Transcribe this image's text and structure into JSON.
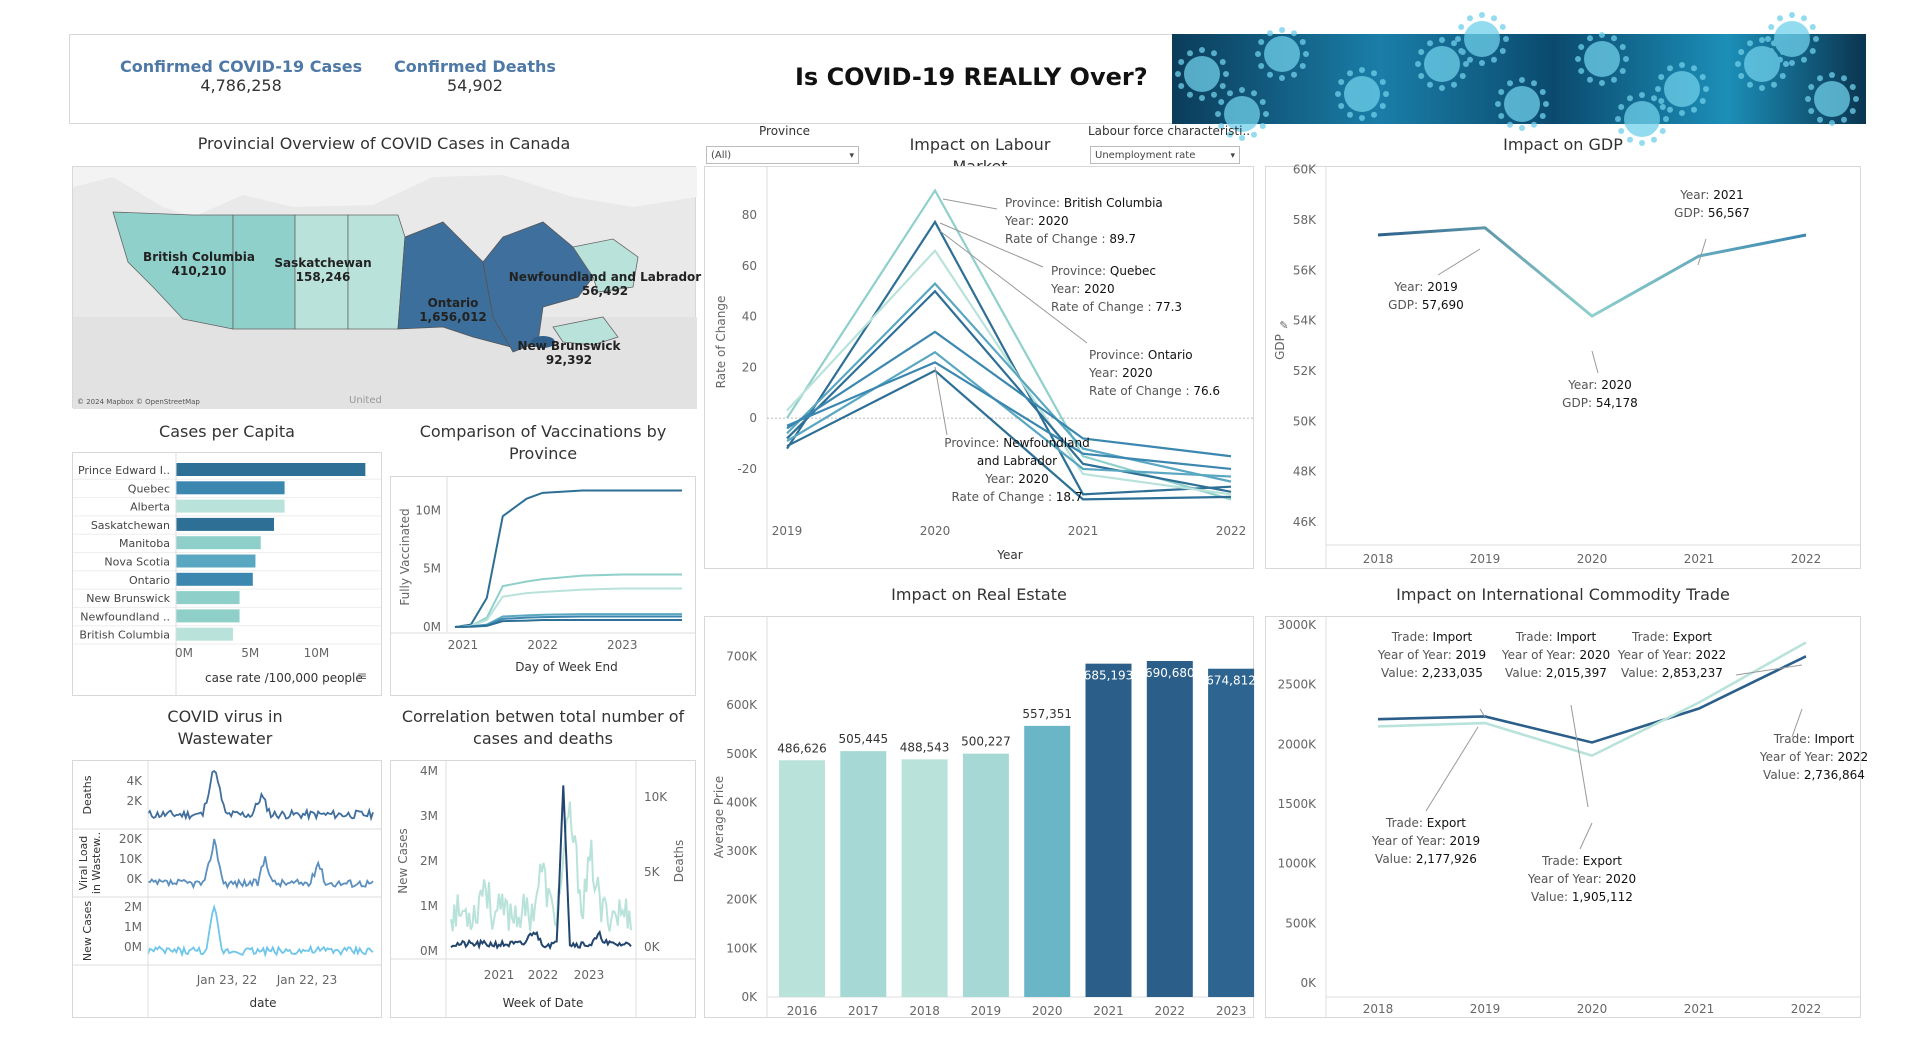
{
  "header": {
    "kpis": [
      {
        "label": "Confirmed COVID-19 Cases",
        "value": "4,786,258"
      },
      {
        "label": "Confirmed Deaths",
        "value": "54,902"
      }
    ],
    "title": "Is COVID-19 REALLY Over?"
  },
  "map": {
    "title": "Provincial Overview of COVID Cases in Canada",
    "attribution": "© 2024 Mapbox © OpenStreetMap",
    "place_label": "United",
    "labels": [
      {
        "name": "British Columbia",
        "value": "410,210"
      },
      {
        "name": "Saskatchewan",
        "value": "158,246"
      },
      {
        "name": "Ontario",
        "value": "1,656,012"
      },
      {
        "name": "Newfoundland and Labrador",
        "value": "56,492"
      },
      {
        "name": "New Brunswick",
        "value": "92,392"
      }
    ]
  },
  "per_capita": {
    "title": "Cases per Capita",
    "axis_label": "case rate /100,000 people",
    "chart_data": {
      "type": "bar",
      "categories": [
        "Prince Edward I..",
        "Quebec",
        "Alberta",
        "Saskatchewan",
        "Manitoba",
        "Nova Scotia",
        "Ontario",
        "New Brunswick",
        "Newfoundland ..",
        "British Columbia"
      ],
      "values": [
        14.3,
        8.2,
        8.2,
        7.4,
        6.4,
        6.0,
        5.8,
        4.8,
        4.8,
        4.3
      ],
      "xticks": [
        "0M",
        "5M",
        "10M"
      ],
      "xlim": [
        0,
        14.5
      ]
    },
    "colors": [
      "#2e6f96",
      "#3b87b0",
      "#b9e3da",
      "#2e6f96",
      "#8fcfc9",
      "#5aa7c2",
      "#3b87b0",
      "#8fcfc9",
      "#8fcfc9",
      "#b9e3da"
    ]
  },
  "vaccination": {
    "title": "Comparison of Vaccinations by Province",
    "ylabel": "Fully Vaccinated",
    "xlabel": "Day of Week End",
    "chart_data": {
      "type": "line",
      "x": [
        2020.9,
        2021.1,
        2021.3,
        2021.5,
        2021.8,
        2022.0,
        2022.5,
        2023.0,
        2023.5,
        2023.75
      ],
      "yticks": [
        "0M",
        "5M",
        "10M"
      ],
      "xticks": [
        "2021",
        "2022",
        "2023"
      ],
      "ylim": [
        0,
        12
      ],
      "xlim": [
        2020.8,
        2023.8
      ],
      "series": [
        {
          "color": "#2e6f96",
          "values": [
            0,
            0.2,
            2.5,
            9.5,
            11.0,
            11.5,
            11.7,
            11.7,
            11.7,
            11.7
          ]
        },
        {
          "color": "#8fd0cb",
          "values": [
            0,
            0.1,
            0.8,
            3.5,
            3.9,
            4.1,
            4.4,
            4.5,
            4.5,
            4.5
          ]
        },
        {
          "color": "#b9e3da",
          "values": [
            0,
            0.1,
            0.6,
            2.6,
            2.9,
            3.0,
            3.2,
            3.3,
            3.3,
            3.3
          ]
        },
        {
          "color": "#5aa7c2",
          "values": [
            0,
            0.05,
            0.2,
            0.9,
            1.0,
            1.05,
            1.1,
            1.1,
            1.1,
            1.1
          ]
        },
        {
          "color": "#3b87b0",
          "values": [
            0,
            0.05,
            0.15,
            0.7,
            0.8,
            0.85,
            0.9,
            0.9,
            0.9,
            0.9
          ]
        },
        {
          "color": "#2e6f96",
          "values": [
            0,
            0.02,
            0.1,
            0.5,
            0.55,
            0.6,
            0.6,
            0.6,
            0.6,
            0.6
          ]
        }
      ]
    }
  },
  "wastewater": {
    "title": "COVID virus in Wastewater",
    "xlabel": "date",
    "xticks": [
      "Jan 23, 22",
      "Jan 22, 23"
    ],
    "rows": [
      {
        "label": "Deaths",
        "ticks": [
          "4K",
          "2K"
        ],
        "color": "#3f6e9c"
      },
      {
        "label": "Viral Load in Wastew..",
        "ticks": [
          "20K",
          "10K",
          "0K"
        ],
        "color": "#5b8fbe"
      },
      {
        "label": "New Cases",
        "ticks": [
          "2M",
          "1M",
          "0M"
        ],
        "color": "#6fc6ea"
      }
    ]
  },
  "correlation": {
    "title": "Correlation betwen total number of cases and deaths",
    "ylabel_left": "New Cases",
    "ylabel_right": "Deaths",
    "xlabel": "Week of Date",
    "yticks_left": [
      "4M",
      "3M",
      "2M",
      "1M",
      "0M"
    ],
    "yticks_right": [
      "10K",
      "5K",
      "0K"
    ],
    "xticks": [
      "2021",
      "2022",
      "2023"
    ]
  },
  "labour": {
    "title": "Impact on Labour Market",
    "province_filter_label": "Province",
    "province_value": "(All)",
    "characteristic_label": "Labour force characteristi..",
    "characteristic_value": "Unemployment rate",
    "ylabel": "Rate of Change",
    "xlabel": "Year",
    "chart_data": {
      "type": "line",
      "x": [
        "2019",
        "2020",
        "2021",
        "2022"
      ],
      "yticks": [
        "80",
        "60",
        "40",
        "20",
        "0",
        "-20"
      ],
      "ylim": [
        -35,
        95
      ],
      "series": [
        {
          "color": "#8fd0cb",
          "values": [
            0,
            89.7,
            -15,
            -32
          ]
        },
        {
          "color": "#2e6f96",
          "values": [
            -12,
            77.3,
            -30,
            -27
          ]
        },
        {
          "color": "#b9e3da",
          "values": [
            3,
            66,
            -22,
            -30
          ]
        },
        {
          "color": "#5aa7c2",
          "values": [
            -6,
            53,
            -12,
            -25
          ]
        },
        {
          "color": "#2e6f96",
          "values": [
            -8,
            50,
            -18,
            -29
          ]
        },
        {
          "color": "#3b87b0",
          "values": [
            -4,
            34,
            -8,
            -15
          ]
        },
        {
          "color": "#5aa7c2",
          "values": [
            -9,
            26,
            -20,
            -23
          ]
        },
        {
          "color": "#2e6f96",
          "values": [
            -11,
            18.7,
            -32,
            -31
          ]
        },
        {
          "color": "#3b87b0",
          "values": [
            -3,
            22,
            -14,
            -20
          ]
        }
      ]
    },
    "annotations": [
      {
        "lines": [
          [
            "Province: ",
            "British Columbia"
          ],
          [
            "Year: ",
            "2020"
          ],
          [
            "Rate of Change : ",
            "89.7"
          ]
        ]
      },
      {
        "lines": [
          [
            "Province: ",
            "Quebec"
          ],
          [
            "Year: ",
            "2020"
          ],
          [
            "Rate of Change : ",
            "77.3"
          ]
        ]
      },
      {
        "lines": [
          [
            "Province: ",
            "Ontario"
          ],
          [
            "Year: ",
            "2020"
          ],
          [
            "Rate of Change : ",
            "76.6"
          ]
        ]
      },
      {
        "lines": [
          [
            "Province: ",
            "Newfoundland"
          ],
          [
            "",
            "and Labrador"
          ],
          [
            "Year: ",
            "2020"
          ],
          [
            "Rate of Change : ",
            "18.7"
          ]
        ]
      }
    ]
  },
  "gdp": {
    "title": "Impact on GDP",
    "ylabel": "GDP",
    "chart_data": {
      "type": "line",
      "x": [
        "2018",
        "2019",
        "2020",
        "2021",
        "2022"
      ],
      "values": [
        57400,
        57690,
        54178,
        56567,
        57400
      ],
      "yticks": [
        "60K",
        "58K",
        "56K",
        "54K",
        "52K",
        "50K",
        "48K",
        "46K"
      ],
      "ylim": [
        45800,
        60500
      ]
    },
    "annotations": [
      {
        "year": "2019",
        "gdp": "57,690"
      },
      {
        "year": "2020",
        "gdp": "54,178"
      },
      {
        "year": "2021",
        "gdp": "56,567"
      }
    ]
  },
  "real_estate": {
    "title": "Impact on Real Estate",
    "ylabel": "Average Price",
    "chart_data": {
      "type": "bar",
      "categories": [
        "2016",
        "2017",
        "2018",
        "2019",
        "2020",
        "2021",
        "2022",
        "2023"
      ],
      "values": [
        486626,
        505445,
        488543,
        500227,
        557351,
        685193,
        690680,
        674812
      ],
      "labels": [
        "486,626",
        "505,445",
        "488,543",
        "500,227",
        "557,351",
        "685,193",
        "690,680",
        "674,812"
      ],
      "yticks": [
        "700K",
        "600K",
        "500K",
        "400K",
        "300K",
        "200K",
        "100K",
        "0K"
      ],
      "ylim": [
        0,
        740000
      ]
    },
    "colors": [
      "#b9e3da",
      "#a6d9d5",
      "#b9e3da",
      "#a6d9d5",
      "#6ab6c6",
      "#2b5f8a",
      "#2b5f8a",
      "#2e6590"
    ]
  },
  "trade": {
    "title": "Impact on International Commodity Trade",
    "chart_data": {
      "type": "line",
      "x": [
        "2018",
        "2019",
        "2020",
        "2021",
        "2022"
      ],
      "yticks": [
        "3000K",
        "2500K",
        "2000K",
        "1500K",
        "1000K",
        "500K",
        "0K"
      ],
      "ylim": [
        0,
        3100000
      ],
      "series": [
        {
          "name": "Import",
          "color": "#2b5f8a",
          "values": [
            2210000,
            2233035,
            2015397,
            2300000,
            2736864
          ]
        },
        {
          "name": "Export",
          "color": "#b9e3da",
          "values": [
            2150000,
            2177926,
            1905112,
            2350000,
            2853237
          ]
        }
      ]
    },
    "annotations": [
      {
        "lines": [
          [
            "Trade: ",
            "Import"
          ],
          [
            "Year of Year: ",
            "2019"
          ],
          [
            "Value: ",
            "2,233,035"
          ]
        ]
      },
      {
        "lines": [
          [
            "Trade: ",
            "Import"
          ],
          [
            "Year of Year: ",
            "2020"
          ],
          [
            "Value: ",
            "2,015,397"
          ]
        ]
      },
      {
        "lines": [
          [
            "Trade: ",
            "Export"
          ],
          [
            "Year of Year: ",
            "2022"
          ],
          [
            "Value: ",
            "2,853,237"
          ]
        ]
      },
      {
        "lines": [
          [
            "Trade: ",
            "Import"
          ],
          [
            "Year of Year: ",
            "2022"
          ],
          [
            "Value: ",
            "2,736,864"
          ]
        ]
      },
      {
        "lines": [
          [
            "Trade: ",
            "Export"
          ],
          [
            "Year of Year: ",
            "2019"
          ],
          [
            "Value: ",
            "2,177,926"
          ]
        ]
      },
      {
        "lines": [
          [
            "Trade: ",
            "Export"
          ],
          [
            "Year of Year: ",
            "2020"
          ],
          [
            "Value: ",
            "1,905,112"
          ]
        ]
      }
    ]
  }
}
